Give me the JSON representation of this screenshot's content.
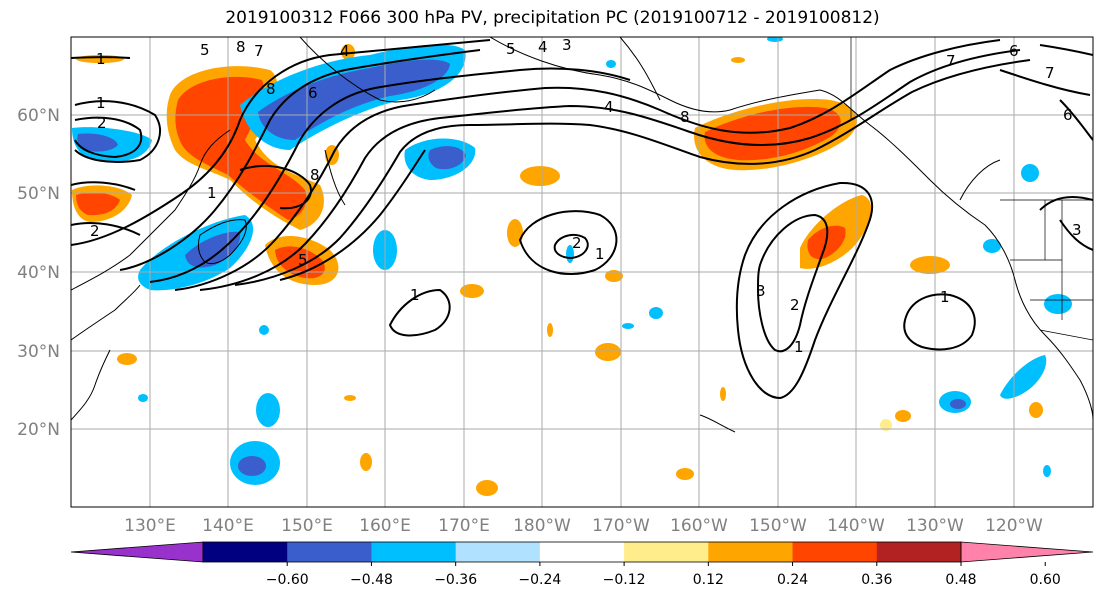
{
  "title": "2019100312 F066 300 hPa PV, precipitation PC (2019100712 - 2019100812)",
  "lat_labels": [
    "60°N",
    "50°N",
    "40°N",
    "30°N",
    "20°N"
  ],
  "lon_labels": [
    "130°E",
    "140°E",
    "150°E",
    "160°E",
    "170°E",
    "180°W",
    "170°W",
    "160°W",
    "150°W",
    "140°W",
    "130°W",
    "120°W"
  ],
  "colorbar": {
    "tick_labels": [
      "−0.60",
      "−0.48",
      "−0.36",
      "−0.24",
      "−0.12",
      "0.12",
      "0.24",
      "0.36",
      "0.48",
      "0.60"
    ],
    "colors": [
      "#9932cc",
      "#000080",
      "#3a5fcd",
      "#00bfff",
      "#b0e2ff",
      "#ffffff",
      "#ffec8b",
      "#ffa500",
      "#ff4500",
      "#b22222",
      "#ff82ab"
    ]
  },
  "contour_labels": [
    "1",
    "2",
    "3",
    "4",
    "5",
    "6",
    "7",
    "8"
  ]
}
